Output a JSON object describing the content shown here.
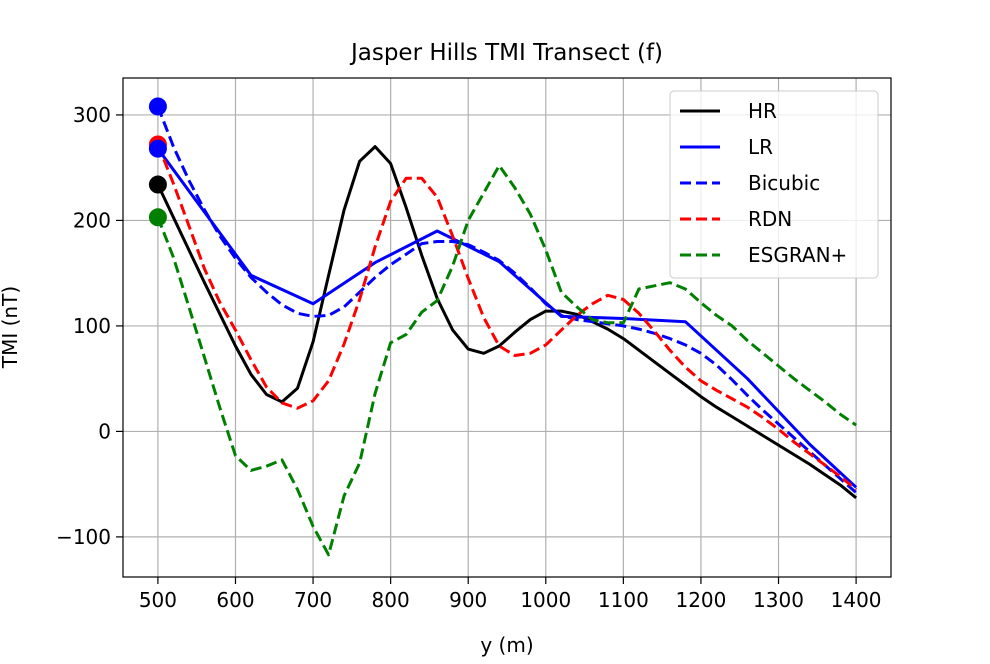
{
  "chart_data": {
    "type": "line",
    "title": "Jasper Hills TMI Transect (f)",
    "xlabel": "y (m)",
    "ylabel": "TMI (nT)",
    "xlim": [
      455,
      1445
    ],
    "ylim": [
      -138,
      335
    ],
    "xticks": [
      500,
      600,
      700,
      800,
      900,
      1000,
      1100,
      1200,
      1300,
      1400
    ],
    "yticks": [
      -100,
      0,
      100,
      200,
      300
    ],
    "ytick_labels": [
      "−100",
      "0",
      "100",
      "200",
      "300"
    ],
    "grid": true,
    "legend_position": "top-right",
    "series": [
      {
        "name": "HR",
        "color": "#000000",
        "style": "solid",
        "x": [
          500,
          520,
          540,
          560,
          580,
          600,
          620,
          640,
          660,
          680,
          700,
          720,
          740,
          760,
          780,
          800,
          820,
          840,
          860,
          880,
          900,
          920,
          940,
          960,
          980,
          1000,
          1020,
          1040,
          1060,
          1080,
          1100,
          1120,
          1140,
          1160,
          1180,
          1200,
          1220,
          1240,
          1260,
          1280,
          1300,
          1320,
          1340,
          1360,
          1380,
          1400
        ],
        "y": [
          234,
          203,
          172,
          141,
          111,
          81,
          54,
          35,
          28,
          41,
          85,
          148,
          210,
          256,
          270,
          254,
          212,
          167,
          126,
          96,
          78,
          74,
          81,
          94,
          106,
          114,
          114,
          111,
          104,
          97,
          88,
          77,
          66,
          55,
          44,
          33,
          23,
          14,
          5,
          -4,
          -13,
          -22,
          -31,
          -41,
          -51,
          -63
        ]
      },
      {
        "name": "LR",
        "color": "#0000ff",
        "style": "solid",
        "x": [
          500,
          620,
          700,
          780,
          860,
          940,
          1020,
          1100,
          1180,
          1260,
          1340,
          1400
        ],
        "y": [
          268,
          148,
          121,
          160,
          190,
          161,
          109,
          107,
          104,
          50,
          -12,
          -53
        ]
      },
      {
        "name": "Bicubic",
        "color": "#0000ff",
        "style": "dashed",
        "x": [
          500,
          520,
          540,
          560,
          580,
          600,
          620,
          640,
          660,
          680,
          700,
          720,
          740,
          760,
          780,
          800,
          820,
          840,
          860,
          880,
          900,
          920,
          940,
          960,
          980,
          1000,
          1020,
          1040,
          1060,
          1080,
          1100,
          1120,
          1140,
          1160,
          1180,
          1200,
          1220,
          1240,
          1260,
          1280,
          1300,
          1320,
          1340,
          1360,
          1380,
          1400
        ],
        "y": [
          308,
          270,
          238,
          210,
          185,
          164,
          146,
          132,
          120,
          112,
          109,
          110,
          118,
          132,
          146,
          158,
          168,
          178,
          180,
          180,
          177,
          170,
          162,
          150,
          136,
          121,
          110,
          106,
          104,
          102,
          100,
          97,
          93,
          88,
          82,
          74,
          63,
          49,
          34,
          20,
          7,
          -6,
          -19,
          -32,
          -45,
          -58
        ]
      },
      {
        "name": "RDN",
        "color": "#ff0000",
        "style": "dashed",
        "x": [
          500,
          520,
          540,
          560,
          580,
          600,
          620,
          640,
          660,
          680,
          700,
          720,
          740,
          760,
          780,
          800,
          820,
          840,
          860,
          880,
          900,
          920,
          940,
          960,
          980,
          1000,
          1020,
          1040,
          1060,
          1080,
          1100,
          1120,
          1140,
          1160,
          1180,
          1200,
          1220,
          1240,
          1260,
          1280,
          1300,
          1320,
          1340,
          1360,
          1380,
          1400
        ],
        "y": [
          272,
          235,
          195,
          154,
          122,
          96,
          68,
          42,
          27,
          22,
          29,
          48,
          83,
          125,
          175,
          218,
          240,
          240,
          222,
          185,
          145,
          108,
          81,
          72,
          74,
          82,
          96,
          110,
          121,
          129,
          125,
          112,
          95,
          77,
          61,
          48,
          39,
          31,
          23,
          13,
          2,
          -10,
          -21,
          -32,
          -43,
          -55
        ]
      },
      {
        "name": "ESGRAN+",
        "color": "#008000",
        "style": "dashed",
        "x": [
          500,
          520,
          540,
          560,
          580,
          600,
          620,
          640,
          660,
          680,
          700,
          720,
          740,
          760,
          780,
          800,
          820,
          840,
          860,
          880,
          900,
          920,
          940,
          960,
          980,
          1000,
          1020,
          1040,
          1060,
          1080,
          1100,
          1120,
          1140,
          1160,
          1180,
          1200,
          1220,
          1240,
          1260,
          1280,
          1300,
          1320,
          1340,
          1360,
          1380,
          1400
        ],
        "y": [
          203,
          165,
          118,
          70,
          22,
          -23,
          -37,
          -33,
          -27,
          -55,
          -90,
          -117,
          -61,
          -30,
          36,
          84,
          92,
          113,
          124,
          157,
          200,
          226,
          252,
          231,
          206,
          172,
          132,
          118,
          106,
          103,
          103,
          135,
          138,
          141,
          135,
          122,
          110,
          100,
          86,
          74,
          62,
          50,
          39,
          28,
          16,
          6
        ]
      }
    ],
    "start_markers": [
      {
        "series": "Bicubic",
        "x": 500,
        "y": 308,
        "color": "#0000ff"
      },
      {
        "series": "RDN",
        "x": 500,
        "y": 272,
        "color": "#ff0000"
      },
      {
        "series": "LR",
        "x": 500,
        "y": 268,
        "color": "#0000ff"
      },
      {
        "series": "HR",
        "x": 500,
        "y": 234,
        "color": "#000000"
      },
      {
        "series": "ESGRAN+",
        "x": 500,
        "y": 203,
        "color": "#008000"
      }
    ]
  }
}
